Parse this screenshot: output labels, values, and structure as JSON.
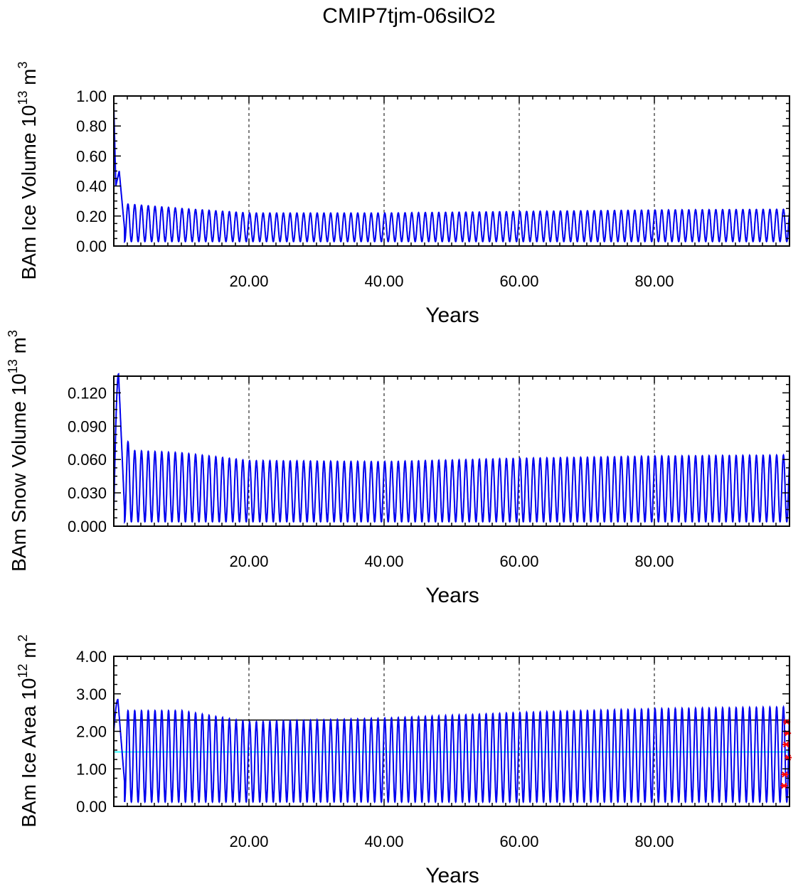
{
  "title": "CMIP7tjm-06silO2",
  "chart_data": [
    {
      "type": "line",
      "ylabel": "BAm Ice Volume 10",
      "ylabel_exp": "13",
      "ylabel_unit": "m",
      "ylabel_unit_exp": "3",
      "xlabel": "Years",
      "xlim": [
        0,
        100
      ],
      "ylim": [
        0,
        1.0
      ],
      "xticks": [
        20,
        40,
        60,
        80
      ],
      "xtick_labels": [
        "20.00",
        "40.00",
        "60.00",
        "80.00"
      ],
      "yticks": [
        0,
        0.2,
        0.4,
        0.6,
        0.8,
        1.0
      ],
      "ytick_labels": [
        "0.00",
        "0.20",
        "0.40",
        "0.60",
        "0.80",
        "1.00"
      ],
      "grid": "vertical dashed at major x ticks",
      "series": [
        {
          "color": "#0000ee",
          "description_values": {
            "start": 0.93,
            "dip_year_0_3": 0.4,
            "peak_year_0_8": 0.5,
            "seasonal_max_by_year": [
              [
                2,
                0.28
              ],
              [
                10,
                0.25
              ],
              [
                20,
                0.22
              ],
              [
                40,
                0.22
              ],
              [
                60,
                0.23
              ],
              [
                80,
                0.24
              ],
              [
                100,
                0.245
              ]
            ],
            "seasonal_min_by_year": [
              [
                2,
                0.03
              ],
              [
                100,
                0.03
              ]
            ]
          }
        }
      ]
    },
    {
      "type": "line",
      "ylabel": "BAm Snow Volume 10",
      "ylabel_exp": "13",
      "ylabel_unit": "m",
      "ylabel_unit_exp": "3",
      "xlabel": "Years",
      "xlim": [
        0,
        100
      ],
      "ylim": [
        0,
        0.135
      ],
      "xticks": [
        20,
        40,
        60,
        80
      ],
      "xtick_labels": [
        "20.00",
        "40.00",
        "60.00",
        "80.00"
      ],
      "yticks": [
        0,
        0.03,
        0.06,
        0.09,
        0.12
      ],
      "ytick_labels": [
        "0.000",
        "0.030",
        "0.060",
        "0.090",
        "0.120"
      ],
      "grid": "vertical dashed at major x ticks",
      "series": [
        {
          "color": "#0000ee",
          "description_values": {
            "start": 0.015,
            "first_peak": 0.137,
            "second_peak": 0.076,
            "seasonal_max_by_year": [
              [
                3,
                0.068
              ],
              [
                10,
                0.066
              ],
              [
                20,
                0.059
              ],
              [
                40,
                0.058
              ],
              [
                60,
                0.061
              ],
              [
                80,
                0.063
              ],
              [
                100,
                0.064
              ]
            ],
            "seasonal_min_by_year": [
              [
                2,
                0.004
              ],
              [
                100,
                0.004
              ]
            ]
          }
        }
      ]
    },
    {
      "type": "line",
      "ylabel": "BAm Ice Area 10",
      "ylabel_exp": "12",
      "ylabel_unit": "m",
      "ylabel_unit_exp": "2",
      "xlabel": "Years",
      "xlim": [
        0,
        100
      ],
      "ylim": [
        0,
        4.0
      ],
      "xticks": [
        20,
        40,
        60,
        80
      ],
      "xtick_labels": [
        "20.00",
        "40.00",
        "60.00",
        "80.00"
      ],
      "yticks": [
        0,
        1,
        2,
        3,
        4
      ],
      "ytick_labels": [
        "0.00",
        "1.00",
        "2.00",
        "3.00",
        "4.00"
      ],
      "grid": "vertical dashed at major x ticks",
      "reference_lines": [
        {
          "y": 2.3,
          "color": "#000000"
        },
        {
          "y": 1.45,
          "color": "#00ffff"
        }
      ],
      "markers": {
        "color": "#ff0000",
        "points": [
          [
            99.6,
            2.25
          ],
          [
            99.7,
            1.95
          ],
          [
            99.5,
            1.65
          ],
          [
            99.8,
            1.3
          ],
          [
            99.3,
            0.85
          ],
          [
            99.2,
            0.55
          ]
        ]
      },
      "series": [
        {
          "color": "#0000ee",
          "description_values": {
            "start": 2.0,
            "first_peak": 2.85,
            "seasonal_max_by_year": [
              [
                3,
                2.55
              ],
              [
                10,
                2.55
              ],
              [
                20,
                2.25
              ],
              [
                30,
                2.3
              ],
              [
                40,
                2.35
              ],
              [
                60,
                2.5
              ],
              [
                80,
                2.6
              ],
              [
                100,
                2.65
              ]
            ],
            "seasonal_min_by_year": [
              [
                2,
                0.12
              ],
              [
                100,
                0.12
              ]
            ]
          }
        }
      ]
    }
  ]
}
